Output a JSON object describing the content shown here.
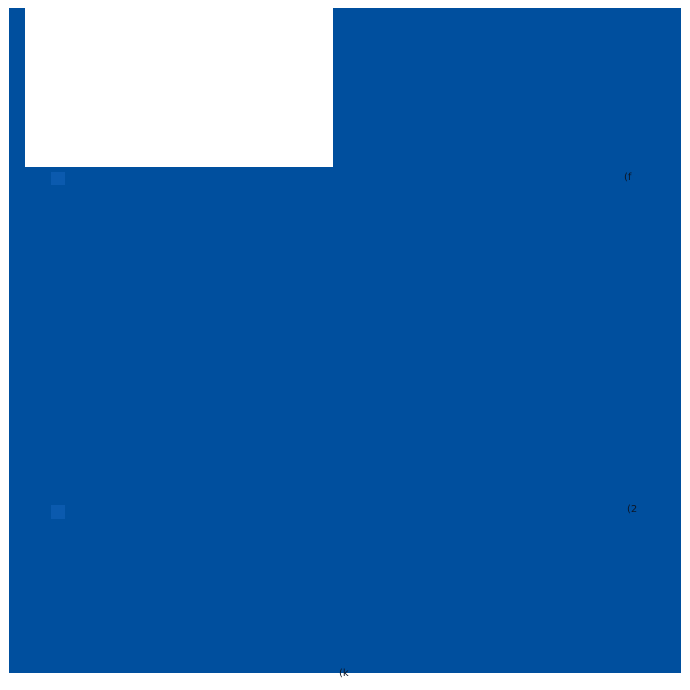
{
  "page": {
    "type": "slide-like full-bleed blue page with white margins",
    "colors": {
      "canvas_background": "#FFFFFF",
      "page_background": "#004F9E",
      "accent_square": "#0B5AAE",
      "micro_text": "#0C1626"
    },
    "white_box": {
      "description": "empty white content box notched into top-left of blue page"
    },
    "accent_squares": [
      {
        "row": 1
      },
      {
        "row": 2
      }
    ],
    "labels": {
      "right_top": "(f",
      "right_middle": "(2",
      "bottom_center": "(k"
    }
  }
}
